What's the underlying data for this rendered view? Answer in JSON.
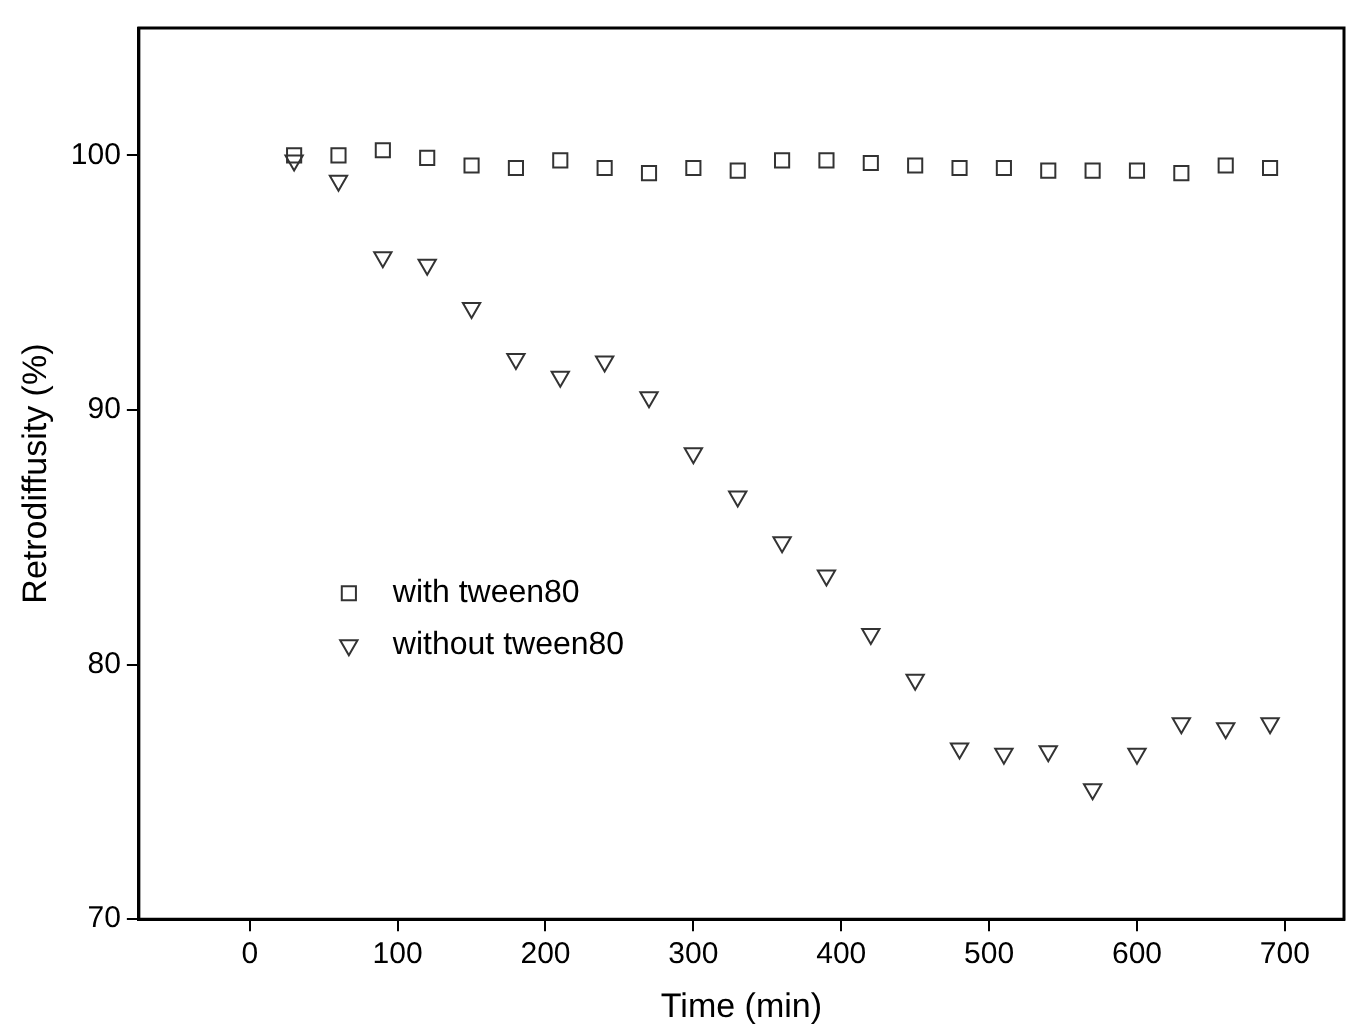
{
  "chart_data": {
    "type": "scatter",
    "xlabel": "Time (min)",
    "ylabel": "Retrodiffusity (%)",
    "xlim": [
      -75,
      740
    ],
    "xticks": [
      0,
      100,
      200,
      300,
      400,
      500,
      600,
      700
    ],
    "ylim": [
      70,
      105
    ],
    "yticks": [
      70,
      80,
      90,
      100
    ],
    "grid": false,
    "legend": "bottom left",
    "x": [
      30,
      60,
      90,
      120,
      150,
      180,
      210,
      240,
      270,
      300,
      330,
      360,
      390,
      420,
      450,
      480,
      510,
      540,
      570,
      600,
      630,
      660,
      690
    ],
    "series": [
      {
        "name": "with tween80",
        "color": "#333333",
        "marker": "square",
        "values": [
          100,
          100,
          100.2,
          99.9,
          99.6,
          99.5,
          99.8,
          99.5,
          99.3,
          99.5,
          99.4,
          99.8,
          99.8,
          99.7,
          99.6,
          99.5,
          99.5,
          99.4,
          99.4,
          99.4,
          99.3,
          99.6,
          99.5
        ]
      },
      {
        "name": "without tween80",
        "color": "#333333",
        "marker": "triangle",
        "values": [
          99.8,
          99.0,
          96.0,
          95.7,
          94.0,
          92.0,
          91.3,
          91.9,
          90.5,
          88.3,
          86.6,
          84.8,
          83.5,
          81.2,
          79.4,
          76.7,
          76.5,
          76.6,
          75.1,
          76.5,
          77.7,
          77.5,
          77.7
        ]
      }
    ]
  }
}
